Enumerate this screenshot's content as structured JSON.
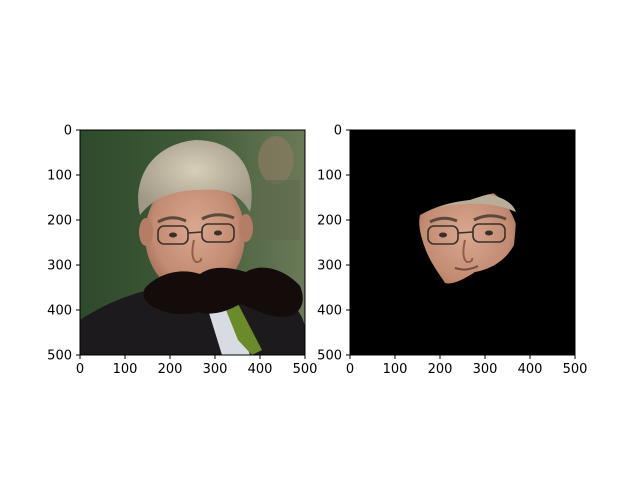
{
  "figure": {
    "background": "#ffffff",
    "axes": [
      {
        "id": "left",
        "content": "photo of a man with grey hair and glasses in a dark suit with a green tie; a dark irregular occluder blob covers the mouth and chin area",
        "x_ticks": [
          "0",
          "100",
          "200",
          "300",
          "400",
          "500"
        ],
        "y_ticks": [
          "0",
          "100",
          "200",
          "300",
          "400",
          "500"
        ]
      },
      {
        "id": "right",
        "content": "black background with only the masked face region (forehead to upper lip) visible",
        "x_ticks": [
          "0",
          "100",
          "200",
          "300",
          "400",
          "500"
        ],
        "y_ticks": [
          "0",
          "100",
          "200",
          "300",
          "400",
          "500"
        ]
      }
    ]
  }
}
